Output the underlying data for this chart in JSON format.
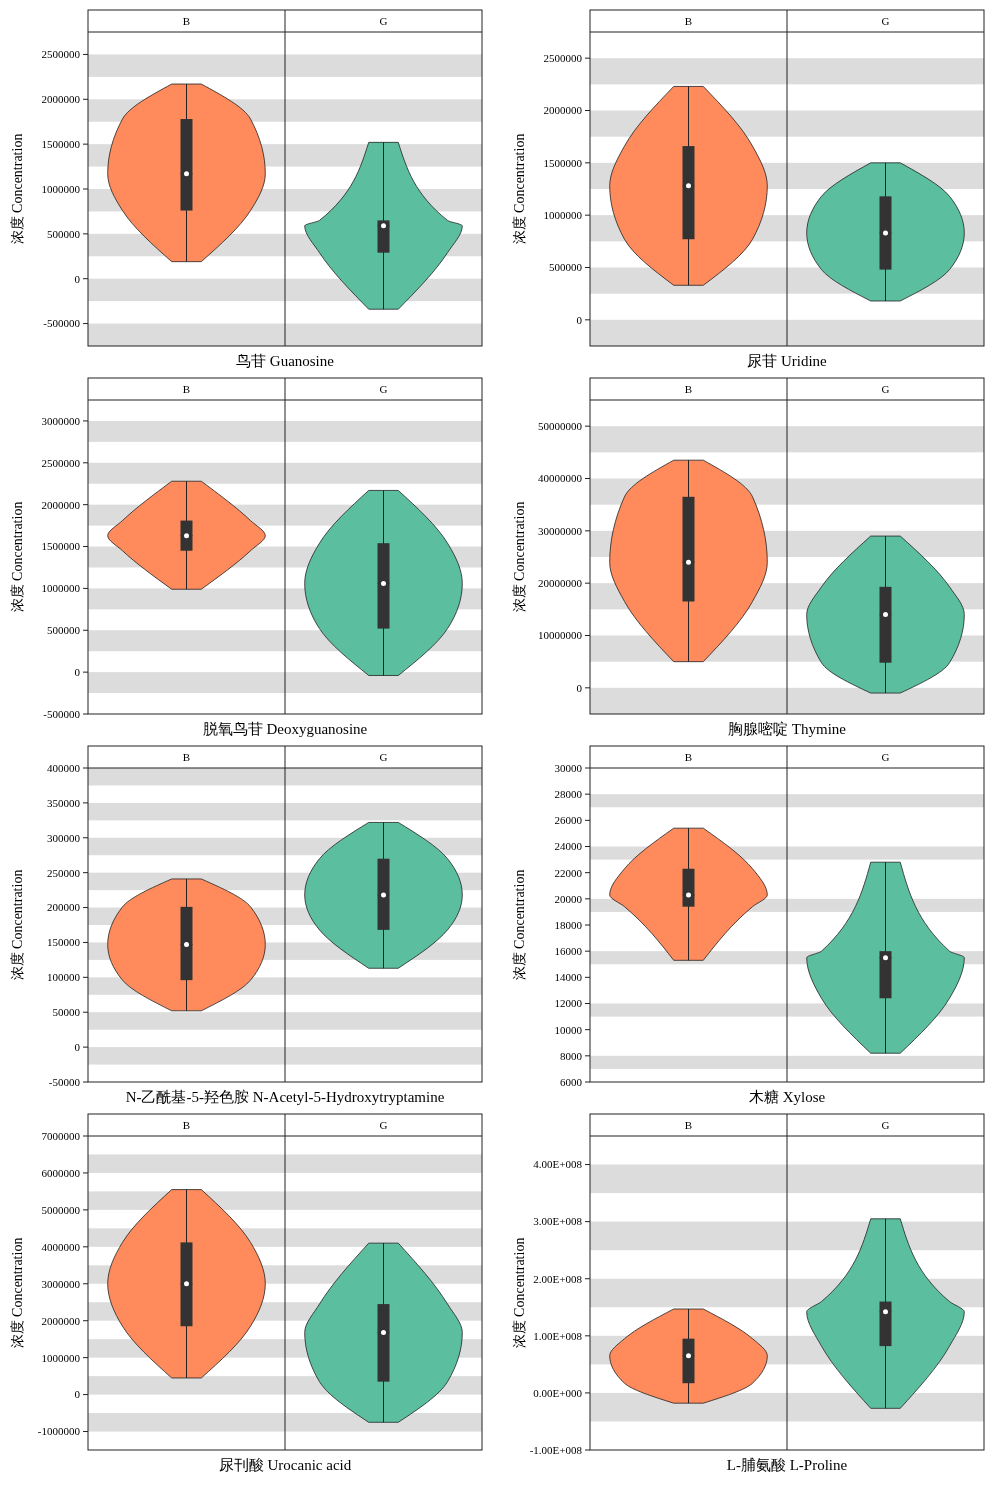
{
  "chart_data": [
    {
      "type": "box",
      "xlabel": "鸟苷 Guanosine",
      "ylabel": "浓度 Concentration",
      "categories": [
        "B",
        "G"
      ],
      "ylim": [
        -750000,
        2750000
      ],
      "yticks": [
        -500000,
        0,
        500000,
        1000000,
        1500000,
        2000000,
        2500000
      ],
      "bands": [
        {
          "axis": "y",
          "from": -750000,
          "to": -500000,
          "color": "#dcdcdc"
        },
        {
          "axis": "y",
          "from": -250000,
          "to": 0,
          "color": "#dcdcdc"
        },
        {
          "axis": "y",
          "from": 250000,
          "to": 500000,
          "color": "#dcdcdc"
        },
        {
          "axis": "y",
          "from": 750000,
          "to": 1000000,
          "color": "#dcdcdc"
        },
        {
          "axis": "y",
          "from": 1250000,
          "to": 1500000,
          "color": "#dcdcdc"
        },
        {
          "axis": "y",
          "from": 1750000,
          "to": 2000000,
          "color": "#dcdcdc"
        },
        {
          "axis": "y",
          "from": 2250000,
          "to": 2500000,
          "color": "#dcdcdc"
        }
      ],
      "boxes": [
        {
          "low": 190000,
          "q1": 760000,
          "median": 1170000,
          "q3": 1780000,
          "high": 2170000
        },
        {
          "low": -340000,
          "q1": 290000,
          "median": 590000,
          "q3": 650000,
          "high": 1520000
        }
      ]
    },
    {
      "type": "box",
      "xlabel": "尿苷 Uridine",
      "ylabel": "浓度 Concentration",
      "categories": [
        "B",
        "G"
      ],
      "ylim": [
        -250000,
        2750000
      ],
      "yticks": [
        0,
        500000,
        1000000,
        1500000,
        2000000,
        2500000
      ],
      "bands": [
        {
          "axis": "y",
          "from": -250000,
          "to": 0,
          "color": "#dcdcdc"
        },
        {
          "axis": "y",
          "from": 250000,
          "to": 500000,
          "color": "#dcdcdc"
        },
        {
          "axis": "y",
          "from": 750000,
          "to": 1000000,
          "color": "#dcdcdc"
        },
        {
          "axis": "y",
          "from": 1250000,
          "to": 1500000,
          "color": "#dcdcdc"
        },
        {
          "axis": "y",
          "from": 1750000,
          "to": 2000000,
          "color": "#dcdcdc"
        },
        {
          "axis": "y",
          "from": 2250000,
          "to": 2500000,
          "color": "#dcdcdc"
        }
      ],
      "boxes": [
        {
          "low": 330000,
          "q1": 770000,
          "median": 1280000,
          "q3": 1660000,
          "high": 2230000
        },
        {
          "low": 180000,
          "q1": 480000,
          "median": 830000,
          "q3": 1180000,
          "high": 1500000
        }
      ]
    },
    {
      "type": "box",
      "xlabel": "脱氧鸟苷 Deoxyguanosine",
      "ylabel": "浓度 Concentration",
      "categories": [
        "B",
        "G"
      ],
      "ylim": [
        -500000,
        3250000
      ],
      "yticks": [
        -500000,
        0,
        500000,
        1000000,
        1500000,
        2000000,
        2500000,
        3000000
      ],
      "bands": [
        {
          "axis": "y",
          "from": -250000,
          "to": 0,
          "color": "#dcdcdc"
        },
        {
          "axis": "y",
          "from": 250000,
          "to": 500000,
          "color": "#dcdcdc"
        },
        {
          "axis": "y",
          "from": 750000,
          "to": 1000000,
          "color": "#dcdcdc"
        },
        {
          "axis": "y",
          "from": 1250000,
          "to": 1500000,
          "color": "#dcdcdc"
        },
        {
          "axis": "y",
          "from": 1750000,
          "to": 2000000,
          "color": "#dcdcdc"
        },
        {
          "axis": "y",
          "from": 2250000,
          "to": 2500000,
          "color": "#dcdcdc"
        },
        {
          "axis": "y",
          "from": 2750000,
          "to": 3000000,
          "color": "#dcdcdc"
        }
      ],
      "boxes": [
        {
          "low": 990000,
          "q1": 1450000,
          "median": 1630000,
          "q3": 1810000,
          "high": 2280000
        },
        {
          "low": -40000,
          "q1": 520000,
          "median": 1060000,
          "q3": 1540000,
          "high": 2170000
        }
      ]
    },
    {
      "type": "box",
      "xlabel": "胸腺嘧啶 Thymine",
      "ylabel": "浓度 Concentration",
      "categories": [
        "B",
        "G"
      ],
      "ylim": [
        -5000000,
        55000000
      ],
      "yticks": [
        0,
        10000000,
        20000000,
        30000000,
        40000000,
        50000000
      ],
      "bands": [
        {
          "axis": "y",
          "from": -5000000,
          "to": 0,
          "color": "#dcdcdc"
        },
        {
          "axis": "y",
          "from": 5000000,
          "to": 10000000,
          "color": "#dcdcdc"
        },
        {
          "axis": "y",
          "from": 15000000,
          "to": 20000000,
          "color": "#dcdcdc"
        },
        {
          "axis": "y",
          "from": 25000000,
          "to": 30000000,
          "color": "#dcdcdc"
        },
        {
          "axis": "y",
          "from": 35000000,
          "to": 40000000,
          "color": "#dcdcdc"
        },
        {
          "axis": "y",
          "from": 45000000,
          "to": 50000000,
          "color": "#dcdcdc"
        }
      ],
      "boxes": [
        {
          "low": 5000000,
          "q1": 16500000,
          "median": 24000000,
          "q3": 36500000,
          "high": 43500000
        },
        {
          "low": -1000000,
          "q1": 4800000,
          "median": 14000000,
          "q3": 19300000,
          "high": 29000000
        }
      ]
    },
    {
      "type": "box",
      "xlabel": "N-乙酰基-5-羟色胺 N-Acetyl-5-Hydroxytryptamine",
      "ylabel": "浓度 Concentration",
      "categories": [
        "B",
        "G"
      ],
      "ylim": [
        -50000,
        400000
      ],
      "yticks": [
        -50000,
        0,
        50000,
        100000,
        150000,
        200000,
        250000,
        300000,
        350000,
        400000
      ],
      "bands": [
        {
          "axis": "y",
          "from": -25000,
          "to": 0,
          "color": "#dcdcdc"
        },
        {
          "axis": "y",
          "from": 25000,
          "to": 50000,
          "color": "#dcdcdc"
        },
        {
          "axis": "y",
          "from": 75000,
          "to": 100000,
          "color": "#dcdcdc"
        },
        {
          "axis": "y",
          "from": 125000,
          "to": 150000,
          "color": "#dcdcdc"
        },
        {
          "axis": "y",
          "from": 175000,
          "to": 200000,
          "color": "#dcdcdc"
        },
        {
          "axis": "y",
          "from": 225000,
          "to": 250000,
          "color": "#dcdcdc"
        },
        {
          "axis": "y",
          "from": 275000,
          "to": 300000,
          "color": "#dcdcdc"
        },
        {
          "axis": "y",
          "from": 325000,
          "to": 350000,
          "color": "#dcdcdc"
        },
        {
          "axis": "y",
          "from": 375000,
          "to": 400000,
          "color": "#dcdcdc"
        }
      ],
      "boxes": [
        {
          "low": 52000,
          "q1": 96000,
          "median": 147000,
          "q3": 201000,
          "high": 241000
        },
        {
          "low": 113000,
          "q1": 168000,
          "median": 218000,
          "q3": 270000,
          "high": 322000
        }
      ]
    },
    {
      "type": "box",
      "xlabel": "木糖 Xylose",
      "ylabel": "浓度 Concentration",
      "categories": [
        "B",
        "G"
      ],
      "ylim": [
        6000,
        30000
      ],
      "yticks": [
        6000,
        8000,
        10000,
        12000,
        14000,
        16000,
        18000,
        20000,
        22000,
        24000,
        26000,
        28000,
        30000
      ],
      "bands": [
        {
          "axis": "y",
          "from": 7000,
          "to": 8000,
          "color": "#dcdcdc"
        },
        {
          "axis": "y",
          "from": 11000,
          "to": 12000,
          "color": "#dcdcdc"
        },
        {
          "axis": "y",
          "from": 15000,
          "to": 16000,
          "color": "#dcdcdc"
        },
        {
          "axis": "y",
          "from": 19000,
          "to": 20000,
          "color": "#dcdcdc"
        },
        {
          "axis": "y",
          "from": 23000,
          "to": 24000,
          "color": "#dcdcdc"
        },
        {
          "axis": "y",
          "from": 27000,
          "to": 28000,
          "color": "#dcdcdc"
        }
      ],
      "boxes": [
        {
          "low": 15300,
          "q1": 19400,
          "median": 20300,
          "q3": 22300,
          "high": 25400
        },
        {
          "low": 8200,
          "q1": 12400,
          "median": 15500,
          "q3": 16000,
          "high": 22800
        }
      ]
    },
    {
      "type": "box",
      "xlabel": "尿刊酸 Urocanic acid",
      "ylabel": "浓度 Concentration",
      "categories": [
        "B",
        "G"
      ],
      "ylim": [
        -1500000,
        7000000
      ],
      "yticks": [
        -1000000,
        0,
        1000000,
        2000000,
        3000000,
        4000000,
        5000000,
        6000000,
        7000000
      ],
      "bands": [
        {
          "axis": "y",
          "from": -1000000,
          "to": -500000,
          "color": "#dcdcdc"
        },
        {
          "axis": "y",
          "from": 0,
          "to": 500000,
          "color": "#dcdcdc"
        },
        {
          "axis": "y",
          "from": 1000000,
          "to": 1500000,
          "color": "#dcdcdc"
        },
        {
          "axis": "y",
          "from": 2000000,
          "to": 2500000,
          "color": "#dcdcdc"
        },
        {
          "axis": "y",
          "from": 3000000,
          "to": 3500000,
          "color": "#dcdcdc"
        },
        {
          "axis": "y",
          "from": 4000000,
          "to": 4500000,
          "color": "#dcdcdc"
        },
        {
          "axis": "y",
          "from": 5000000,
          "to": 5500000,
          "color": "#dcdcdc"
        },
        {
          "axis": "y",
          "from": 6000000,
          "to": 6500000,
          "color": "#dcdcdc"
        }
      ],
      "boxes": [
        {
          "low": 450000,
          "q1": 1850000,
          "median": 3000000,
          "q3": 4120000,
          "high": 5550000
        },
        {
          "low": -750000,
          "q1": 350000,
          "median": 1680000,
          "q3": 2450000,
          "high": 4100000
        }
      ]
    },
    {
      "type": "box",
      "xlabel": "L-脯氨酸 L-Proline",
      "ylabel": "浓度 Concentration",
      "categories": [
        "B",
        "G"
      ],
      "ylim": [
        -100000000,
        450000000
      ],
      "yticks": [
        {
          "value": -100000000,
          "label": "-1.00E+008"
        },
        {
          "value": 0,
          "label": "0.00E+000"
        },
        {
          "value": 100000000,
          "label": "1.00E+008"
        },
        {
          "value": 200000000,
          "label": "2.00E+008"
        },
        {
          "value": 300000000,
          "label": "3.00E+008"
        },
        {
          "value": 400000000,
          "label": "4.00E+008"
        }
      ],
      "bands": [
        {
          "axis": "y",
          "from": -50000000,
          "to": 0,
          "color": "#dcdcdc"
        },
        {
          "axis": "y",
          "from": 50000000,
          "to": 100000000,
          "color": "#dcdcdc"
        },
        {
          "axis": "y",
          "from": 150000000,
          "to": 200000000,
          "color": "#dcdcdc"
        },
        {
          "axis": "y",
          "from": 250000000,
          "to": 300000000,
          "color": "#dcdcdc"
        },
        {
          "axis": "y",
          "from": 350000000,
          "to": 400000000,
          "color": "#dcdcdc"
        }
      ],
      "boxes": [
        {
          "low": -18000000,
          "q1": 17000000,
          "median": 65000000,
          "q3": 95000000,
          "high": 147000000
        },
        {
          "low": -27000000,
          "q1": 82000000,
          "median": 142000000,
          "q3": 160000000,
          "high": 305000000
        }
      ]
    }
  ]
}
